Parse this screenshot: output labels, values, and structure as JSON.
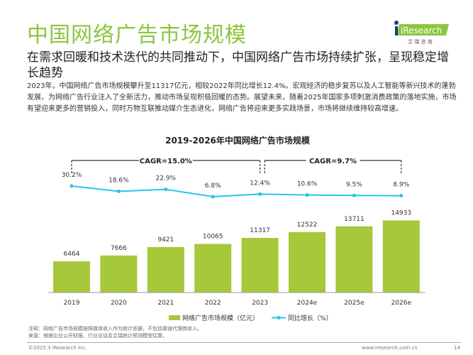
{
  "title": "中国网络广告市场规模",
  "subtitle": "在需求回暖和技术迭代的共同推动下，中国网络广告市场持续扩张，呈现稳定增长趋势",
  "body": "2023年，中国网络广告市场规模攀升至11317亿元，相较2022年同比增长12.4%。宏观经济的稳步复苏以及人工智能等新兴技术的蓬勃发展，为网络广告行业注入了全新活力，推动市场呈现积极回暖的态势。展望未来，随着2025年国家多项刺激消费政策的落地实施，市场有望迎来更多的营销投入，同时万物互联推动媒介生态进化，网络广告将迎来更多实践场景，市场将继续维持较高增速。",
  "logo": {
    "name": "iResearch",
    "sub": "艾 瑞 咨 询"
  },
  "colors": {
    "accent": "#8cc63f",
    "bar": "#a6c83a",
    "line": "#29c4e8"
  },
  "chart_data": {
    "type": "bar+line",
    "title": "2019-2026年中国网络广告市场规模",
    "categories": [
      "2019",
      "2020",
      "2021",
      "2022",
      "2023",
      "2024e",
      "2025e",
      "2026e"
    ],
    "series": [
      {
        "name": "网络广告市场规模（亿元）",
        "type": "bar",
        "values": [
          6464,
          7666,
          9421,
          10065,
          11317,
          12522,
          13711,
          14933
        ]
      },
      {
        "name": "同比增长（%）",
        "type": "line",
        "values": [
          30.2,
          18.6,
          22.9,
          6.8,
          12.4,
          10.6,
          9.5,
          8.9
        ],
        "labels": [
          "30.2%",
          "18.6%",
          "22.9%",
          "6.8%",
          "12.4%",
          "10.6%",
          "9.5%",
          "8.9%"
        ]
      }
    ],
    "annotations": [
      "CAGR=15.0%",
      "CAGR=9.7%"
    ],
    "legend": "bottom"
  },
  "notes": [
    "注释：网络广告市场规模按照媒体收入作为统计依据，不包括渠道代理商收入。",
    "来源：根据企业公开财报、行业访谈及艾瑞统计预测模型估算。"
  ],
  "footer": {
    "copyright": "©2025.3 iResearch Inc.",
    "url": "www.iresearch.com.cn",
    "page": "14"
  }
}
